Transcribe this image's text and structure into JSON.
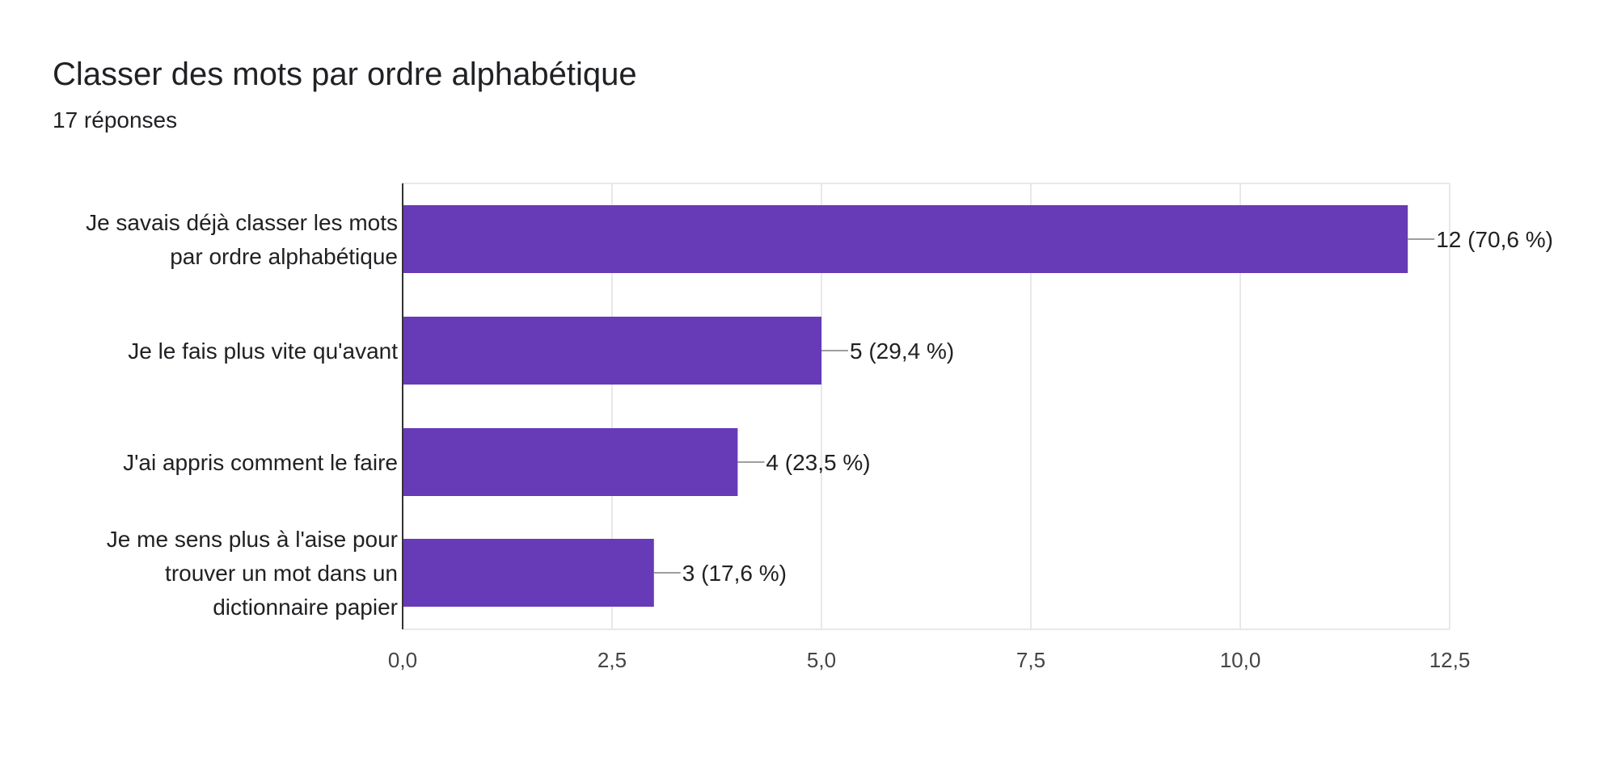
{
  "header": {
    "title": "Classer des mots par ordre alphabétique",
    "subtitle": "17 réponses"
  },
  "colors": {
    "bar": "#673ab7",
    "grid": "#e8e8e8",
    "axis": "#333333",
    "leader": "#9e9e9e"
  },
  "chart_data": {
    "type": "bar",
    "orientation": "horizontal",
    "title": "Classer des mots par ordre alphabétique",
    "subtitle": "17 réponses",
    "categories": [
      [
        "Je savais déjà classer les mots",
        "par ordre alphabétique"
      ],
      [
        "Je le fais plus vite qu'avant"
      ],
      [
        "J'ai appris comment le faire"
      ],
      [
        "Je me sens plus à l'aise pour",
        "trouver un mot dans un",
        "dictionnaire papier"
      ]
    ],
    "values": [
      12,
      5,
      4,
      3
    ],
    "data_labels": [
      "12 (70,6 %)",
      "5 (29,4 %)",
      "4 (23,5 %)",
      "3 (17,6 %)"
    ],
    "xlim": [
      0,
      12.5
    ],
    "xticks": [
      0,
      2.5,
      5,
      7.5,
      10,
      12.5
    ],
    "xtick_labels": [
      "0,0",
      "2,5",
      "5,0",
      "7,5",
      "10,0",
      "12,5"
    ],
    "grid": true,
    "legend": "none"
  }
}
